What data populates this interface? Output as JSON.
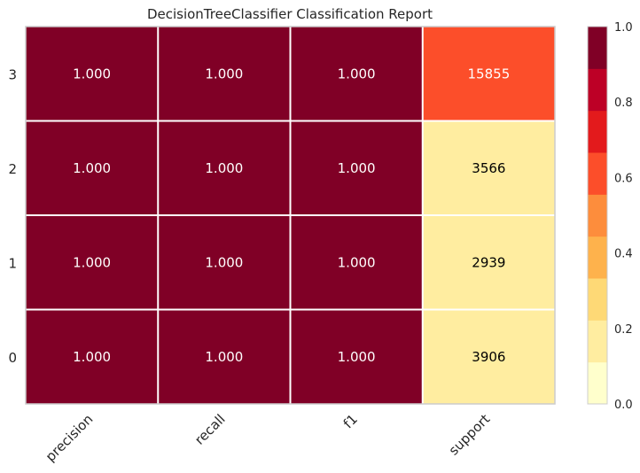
{
  "chart_data": {
    "type": "heatmap",
    "title": "DecisionTreeClassifier Classification Report",
    "columns": [
      "precision",
      "recall",
      "f1",
      "support"
    ],
    "rows": [
      "3",
      "2",
      "1",
      "0"
    ],
    "values": [
      [
        1.0,
        1.0,
        1.0,
        15855
      ],
      [
        1.0,
        1.0,
        1.0,
        3566
      ],
      [
        1.0,
        1.0,
        1.0,
        2939
      ],
      [
        1.0,
        1.0,
        1.0,
        3906
      ]
    ],
    "cell_labels": [
      [
        "1.000",
        "1.000",
        "1.000",
        "15855"
      ],
      [
        "1.000",
        "1.000",
        "1.000",
        "3566"
      ],
      [
        "1.000",
        "1.000",
        "1.000",
        "2939"
      ],
      [
        "1.000",
        "1.000",
        "1.000",
        "3906"
      ]
    ],
    "color_level": [
      [
        1.0,
        1.0,
        1.0,
        0.62
      ],
      [
        1.0,
        1.0,
        1.0,
        0.14
      ],
      [
        1.0,
        1.0,
        1.0,
        0.12
      ],
      [
        1.0,
        1.0,
        1.0,
        0.15
      ]
    ],
    "colorbar": {
      "range": [
        0.0,
        1.0
      ],
      "ticks": [
        "0.0",
        "0.2",
        "0.4",
        "0.6",
        "0.8",
        "1.0"
      ],
      "tick_values": [
        0.0,
        0.2,
        0.4,
        0.6,
        0.8,
        1.0
      ],
      "colors": [
        "#ffffcc",
        "#ffeda0",
        "#fed976",
        "#feb24c",
        "#fd8d3c",
        "#fc4e2a",
        "#e31a1c",
        "#bd0026",
        "#800026"
      ]
    },
    "colors": {
      "grid_line": "#ffffff",
      "frame": "#cccccc",
      "dark_text": "#000000",
      "light_text": "#ffffff"
    }
  }
}
